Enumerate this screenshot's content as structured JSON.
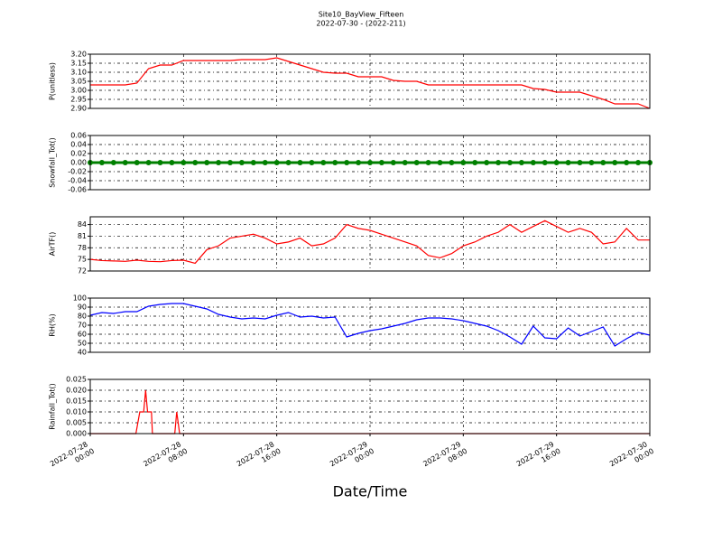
{
  "title": "Site10_BayView_Fifteen",
  "subtitle": "2022-07-30 - (2022-211)",
  "xlabel": "Date/Time",
  "xlim": [
    "2022-07-28 00:00",
    "2022-07-30 00:00"
  ],
  "xticks": [
    "2022-07-28 00:00",
    "2022-07-28 08:00",
    "2022-07-28 16:00",
    "2022-07-29 00:00",
    "2022-07-29 08:00",
    "2022-07-29 16:00",
    "2022-07-30 00:00"
  ],
  "grid": true,
  "chart_data": [
    {
      "type": "line",
      "ylabel": "P(unitless)",
      "color": "#ff0000",
      "x": [
        "2022-07-28 00:00",
        "2022-07-28 01:00",
        "2022-07-28 02:00",
        "2022-07-28 03:00",
        "2022-07-28 04:00",
        "2022-07-28 05:00",
        "2022-07-28 06:00",
        "2022-07-28 07:00",
        "2022-07-28 08:00",
        "2022-07-28 09:00",
        "2022-07-28 10:00",
        "2022-07-28 11:00",
        "2022-07-28 12:00",
        "2022-07-28 13:00",
        "2022-07-28 14:00",
        "2022-07-28 15:00",
        "2022-07-28 16:00",
        "2022-07-28 17:00",
        "2022-07-28 18:00",
        "2022-07-28 19:00",
        "2022-07-28 20:00",
        "2022-07-28 21:00",
        "2022-07-28 22:00",
        "2022-07-28 23:00",
        "2022-07-29 00:00",
        "2022-07-29 01:00",
        "2022-07-29 02:00",
        "2022-07-29 03:00",
        "2022-07-29 04:00",
        "2022-07-29 05:00",
        "2022-07-29 06:00",
        "2022-07-29 07:00",
        "2022-07-29 08:00",
        "2022-07-29 09:00",
        "2022-07-29 10:00",
        "2022-07-29 11:00",
        "2022-07-29 12:00",
        "2022-07-29 13:00",
        "2022-07-29 14:00",
        "2022-07-29 15:00",
        "2022-07-29 16:00",
        "2022-07-29 17:00",
        "2022-07-29 18:00",
        "2022-07-29 19:00",
        "2022-07-29 20:00",
        "2022-07-29 21:00",
        "2022-07-29 22:00",
        "2022-07-29 23:00",
        "2022-07-30 00:00"
      ],
      "values": [
        3.03,
        3.03,
        3.03,
        3.03,
        3.04,
        3.12,
        3.14,
        3.14,
        3.165,
        3.165,
        3.165,
        3.165,
        3.165,
        3.17,
        3.17,
        3.17,
        3.18,
        3.16,
        3.14,
        3.12,
        3.1,
        3.095,
        3.095,
        3.075,
        3.075,
        3.075,
        3.055,
        3.05,
        3.05,
        3.03,
        3.03,
        3.03,
        3.03,
        3.03,
        3.03,
        3.03,
        3.03,
        3.03,
        3.01,
        3.005,
        2.99,
        2.99,
        2.99,
        2.97,
        2.95,
        2.925,
        2.925,
        2.925,
        2.9
      ],
      "ylim": [
        2.9,
        3.2
      ],
      "yticks": [
        {
          "value": 2.9,
          "label": "2.90"
        },
        2.95,
        {
          "value": 3,
          "label": "3.00"
        },
        3.05,
        {
          "value": 3.1,
          "label": "3.10"
        },
        3.15,
        {
          "value": 3.2,
          "label": "3.20"
        }
      ]
    },
    {
      "type": "line",
      "ylabel": "Snowfall_Tot()",
      "color": "#008000",
      "markers": true,
      "x": [
        "2022-07-28 00:00",
        "2022-07-28 01:00",
        "2022-07-28 02:00",
        "2022-07-28 03:00",
        "2022-07-28 04:00",
        "2022-07-28 05:00",
        "2022-07-28 06:00",
        "2022-07-28 07:00",
        "2022-07-28 08:00",
        "2022-07-28 09:00",
        "2022-07-28 10:00",
        "2022-07-28 11:00",
        "2022-07-28 12:00",
        "2022-07-28 13:00",
        "2022-07-28 14:00",
        "2022-07-28 15:00",
        "2022-07-28 16:00",
        "2022-07-28 17:00",
        "2022-07-28 18:00",
        "2022-07-28 19:00",
        "2022-07-28 20:00",
        "2022-07-28 21:00",
        "2022-07-28 22:00",
        "2022-07-28 23:00",
        "2022-07-29 00:00",
        "2022-07-29 01:00",
        "2022-07-29 02:00",
        "2022-07-29 03:00",
        "2022-07-29 04:00",
        "2022-07-29 05:00",
        "2022-07-29 06:00",
        "2022-07-29 07:00",
        "2022-07-29 08:00",
        "2022-07-29 09:00",
        "2022-07-29 10:00",
        "2022-07-29 11:00",
        "2022-07-29 12:00",
        "2022-07-29 13:00",
        "2022-07-29 14:00",
        "2022-07-29 15:00",
        "2022-07-29 16:00",
        "2022-07-29 17:00",
        "2022-07-29 18:00",
        "2022-07-29 19:00",
        "2022-07-29 20:00",
        "2022-07-29 21:00",
        "2022-07-29 22:00",
        "2022-07-29 23:00",
        "2022-07-30 00:00"
      ],
      "values": [
        0,
        0,
        0,
        0,
        0,
        0,
        0,
        0,
        0,
        0,
        0,
        0,
        0,
        0,
        0,
        0,
        0,
        0,
        0,
        0,
        0,
        0,
        0,
        0,
        0,
        0,
        0,
        0,
        0,
        0,
        0,
        0,
        0,
        0,
        0,
        0,
        0,
        0,
        0,
        0,
        0,
        0,
        0,
        0,
        0,
        0,
        0,
        0,
        0
      ],
      "ylim": [
        -0.06,
        0.06
      ],
      "yticks": [
        {
          "value": -0.06,
          "label": "-0.06"
        },
        {
          "value": -0.04,
          "label": "-0.04"
        },
        {
          "value": -0.02,
          "label": "-0.02"
        },
        {
          "value": 0,
          "label": "0.00"
        },
        0.02,
        0.04,
        0.06
      ]
    },
    {
      "type": "line",
      "ylabel": "AirTF()",
      "color": "#ff0000",
      "x": [
        "2022-07-28 00:00",
        "2022-07-28 01:00",
        "2022-07-28 02:00",
        "2022-07-28 03:00",
        "2022-07-28 04:00",
        "2022-07-28 05:00",
        "2022-07-28 06:00",
        "2022-07-28 07:00",
        "2022-07-28 08:00",
        "2022-07-28 09:00",
        "2022-07-28 10:00",
        "2022-07-28 11:00",
        "2022-07-28 12:00",
        "2022-07-28 13:00",
        "2022-07-28 14:00",
        "2022-07-28 15:00",
        "2022-07-28 16:00",
        "2022-07-28 17:00",
        "2022-07-28 18:00",
        "2022-07-28 19:00",
        "2022-07-28 20:00",
        "2022-07-28 21:00",
        "2022-07-28 22:00",
        "2022-07-28 23:00",
        "2022-07-29 00:00",
        "2022-07-29 01:00",
        "2022-07-29 02:00",
        "2022-07-29 03:00",
        "2022-07-29 04:00",
        "2022-07-29 05:00",
        "2022-07-29 06:00",
        "2022-07-29 07:00",
        "2022-07-29 08:00",
        "2022-07-29 09:00",
        "2022-07-29 10:00",
        "2022-07-29 11:00",
        "2022-07-29 12:00",
        "2022-07-29 13:00",
        "2022-07-29 14:00",
        "2022-07-29 15:00",
        "2022-07-29 16:00",
        "2022-07-29 17:00",
        "2022-07-29 18:00",
        "2022-07-29 19:00",
        "2022-07-29 20:00",
        "2022-07-29 21:00",
        "2022-07-29 22:00",
        "2022-07-29 23:00",
        "2022-07-30 00:00"
      ],
      "values": [
        75,
        74.7,
        74.6,
        74.5,
        74.8,
        74.5,
        74.4,
        74.7,
        74.8,
        74,
        77.5,
        78.5,
        80.5,
        81,
        81.5,
        80.5,
        79,
        79.5,
        80.5,
        78.5,
        79,
        80.5,
        84,
        83,
        82.5,
        81.5,
        80.5,
        79.5,
        78.5,
        76,
        75.4,
        76.5,
        78.5,
        79.5,
        81,
        82,
        84,
        82,
        83.5,
        85,
        83.5,
        82,
        83,
        82,
        79,
        79.5,
        83,
        80,
        80
      ],
      "ylim": [
        72,
        86
      ],
      "yticks": [
        72,
        75,
        78,
        81,
        84
      ]
    },
    {
      "type": "line",
      "ylabel": "RH(%)",
      "color": "#0000ff",
      "x": [
        "2022-07-28 00:00",
        "2022-07-28 01:00",
        "2022-07-28 02:00",
        "2022-07-28 03:00",
        "2022-07-28 04:00",
        "2022-07-28 05:00",
        "2022-07-28 06:00",
        "2022-07-28 07:00",
        "2022-07-28 08:00",
        "2022-07-28 09:00",
        "2022-07-28 10:00",
        "2022-07-28 11:00",
        "2022-07-28 12:00",
        "2022-07-28 13:00",
        "2022-07-28 14:00",
        "2022-07-28 15:00",
        "2022-07-28 16:00",
        "2022-07-28 17:00",
        "2022-07-28 18:00",
        "2022-07-28 19:00",
        "2022-07-28 20:00",
        "2022-07-28 21:00",
        "2022-07-28 22:00",
        "2022-07-28 23:00",
        "2022-07-29 00:00",
        "2022-07-29 01:00",
        "2022-07-29 02:00",
        "2022-07-29 03:00",
        "2022-07-29 04:00",
        "2022-07-29 05:00",
        "2022-07-29 06:00",
        "2022-07-29 07:00",
        "2022-07-29 08:00",
        "2022-07-29 09:00",
        "2022-07-29 10:00",
        "2022-07-29 11:00",
        "2022-07-29 12:00",
        "2022-07-29 13:00",
        "2022-07-29 14:00",
        "2022-07-29 15:00",
        "2022-07-29 16:00",
        "2022-07-29 17:00",
        "2022-07-29 18:00",
        "2022-07-29 19:00",
        "2022-07-29 20:00",
        "2022-07-29 21:00",
        "2022-07-29 22:00",
        "2022-07-29 23:00",
        "2022-07-30 00:00"
      ],
      "values": [
        81,
        84,
        83,
        85,
        85,
        91,
        93,
        94,
        94,
        91,
        88,
        82,
        79,
        77,
        78,
        77,
        81,
        84,
        79,
        80,
        78,
        79,
        57,
        61,
        64,
        66,
        69,
        72,
        76,
        78,
        78,
        77,
        75,
        72,
        69,
        64,
        57,
        49,
        69,
        56,
        55,
        67,
        58,
        63,
        68,
        47,
        55,
        62,
        59
      ],
      "ylim": [
        40,
        100
      ],
      "yticks": [
        40,
        50,
        60,
        70,
        80,
        90,
        100
      ]
    },
    {
      "type": "line",
      "ylabel": "Rainfall_Tot()",
      "color": "#ff0000",
      "x": [
        "2022-07-28 00:00",
        "2022-07-28 03:55",
        "2022-07-28 04:15",
        "2022-07-28 04:35",
        "2022-07-28 04:45",
        "2022-07-28 04:55",
        "2022-07-28 05:15",
        "2022-07-28 05:20",
        "2022-07-28 07:15",
        "2022-07-28 07:25",
        "2022-07-28 07:40",
        "2022-07-30 00:00"
      ],
      "values": [
        0,
        0,
        0.01,
        0.01,
        0.02,
        0.01,
        0.01,
        0,
        0,
        0.01,
        0,
        0
      ],
      "ylim": [
        0,
        0.025
      ],
      "yticks": [
        {
          "value": 0,
          "label": "0.000"
        },
        {
          "value": 0.005,
          "label": "0.005"
        },
        {
          "value": 0.01,
          "label": "0.010"
        },
        {
          "value": 0.015,
          "label": "0.015"
        },
        {
          "value": 0.02,
          "label": "0.020"
        },
        {
          "value": 0.025,
          "label": "0.025"
        }
      ]
    }
  ]
}
